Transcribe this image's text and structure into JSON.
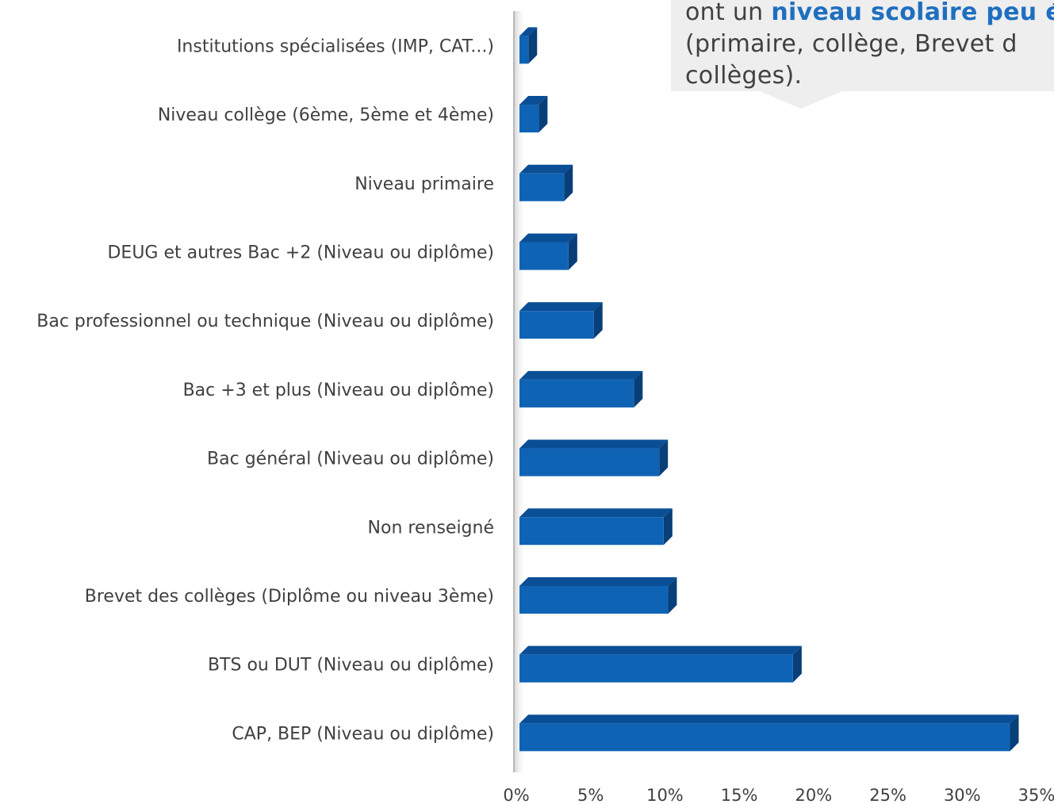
{
  "chart_data": {
    "type": "bar",
    "orientation": "horizontal",
    "categories": [
      "Institutions spécialisées (IMP, CAT...)",
      "Niveau collège (6ème, 5ème et 4ème)",
      "Niveau primaire",
      "DEUG et autres Bac +2 (Niveau ou diplôme)",
      "Bac professionnel ou technique (Niveau ou diplôme)",
      "Bac +3 et plus (Niveau ou diplôme)",
      "Bac général (Niveau ou diplôme)",
      "Non renseigné",
      "Brevet des collèges (Diplôme ou niveau 3ème)",
      "BTS ou DUT (Niveau ou diplôme)",
      "CAP, BEP (Niveau ou diplôme)"
    ],
    "values": [
      0.6,
      1.3,
      3.0,
      3.3,
      5.0,
      7.7,
      9.4,
      9.7,
      10.0,
      18.4,
      33.0
    ],
    "xlim": [
      0,
      35
    ],
    "xticks": [
      "0%",
      "5%",
      "10%",
      "15%",
      "20%",
      "25%",
      "30%",
      "35%"
    ],
    "grid": false,
    "colors": {
      "bar_front": "#0f63b5",
      "bar_top": "#0a4f95",
      "bar_side": "#083f78"
    }
  },
  "callout": {
    "line1_prefix": "ont un ",
    "line1_highlight": "niveau scolaire peu éle",
    "line2": "(primaire, collège, Brevet d",
    "line3": "collèges)."
  }
}
